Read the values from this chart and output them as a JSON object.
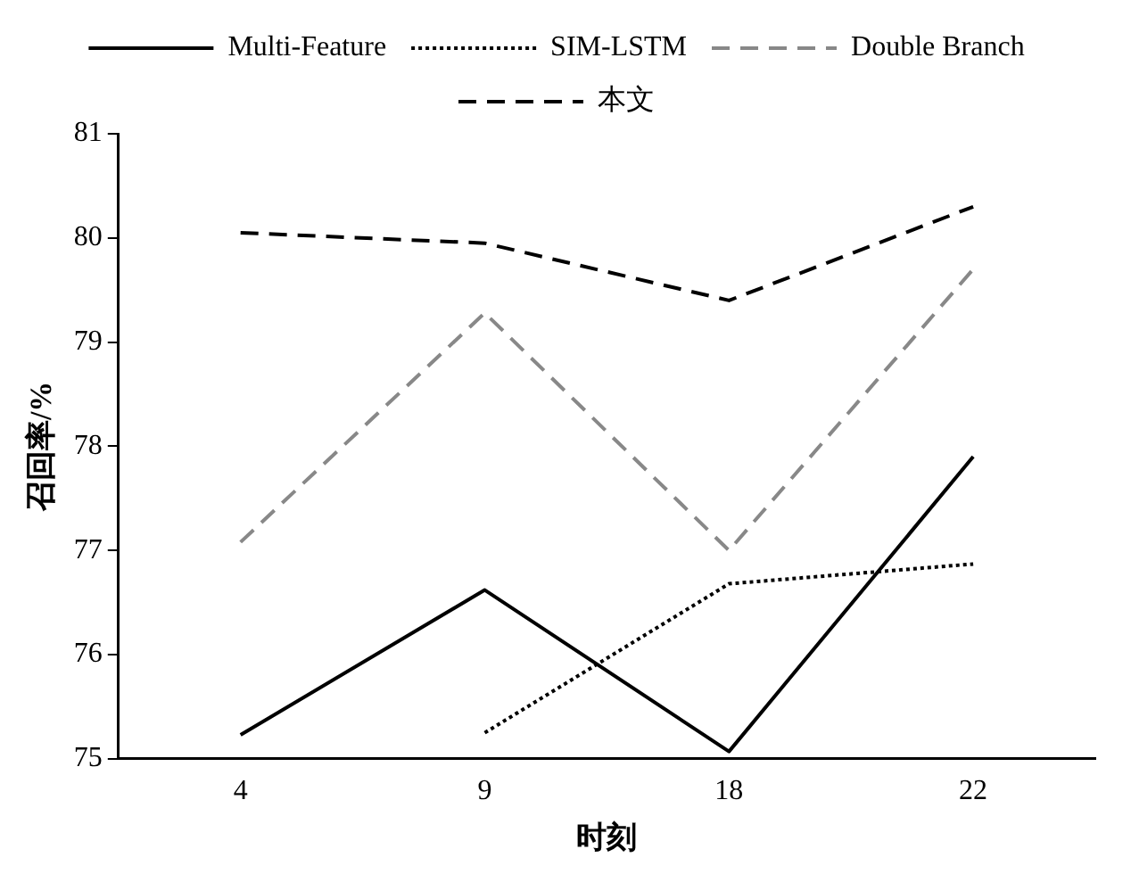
{
  "chart_data": {
    "type": "line",
    "xlabel": "时刻",
    "ylabel": "召回率/%",
    "categories": [
      "4",
      "9",
      "18",
      "22"
    ],
    "series": [
      {
        "name": "Multi-Feature",
        "color": "#000000",
        "line_style": "solid",
        "values": [
          75.23,
          76.62,
          75.07,
          77.9
        ]
      },
      {
        "name": "SIM-LSTM",
        "color": "#000000",
        "line_style": "dotted",
        "values": [
          null,
          75.25,
          76.68,
          76.87
        ]
      },
      {
        "name": "Double Branch",
        "color": "#888888",
        "line_style": "dashed",
        "values": [
          77.08,
          79.28,
          77.0,
          79.7
        ]
      },
      {
        "name": "本文",
        "color": "#000000",
        "line_style": "dashed",
        "values": [
          80.05,
          79.95,
          79.4,
          80.3
        ]
      }
    ],
    "ylim": [
      75,
      81
    ],
    "yticks": [
      75,
      76,
      77,
      78,
      79,
      80,
      81
    ],
    "grid": false,
    "legend": "top",
    "marker": "none"
  }
}
